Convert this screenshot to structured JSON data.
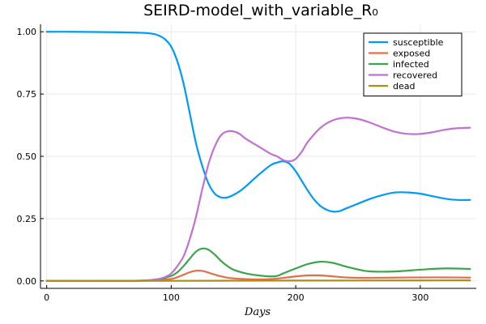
{
  "chart_data": {
    "type": "line",
    "title": "SEIRD-model_with_variable_R₀",
    "xlabel": "Days",
    "ylabel": "",
    "xlim": [
      -5,
      345
    ],
    "ylim": [
      -0.03,
      1.03
    ],
    "xticks": [
      0,
      100,
      200,
      300
    ],
    "xtick_labels": [
      "0",
      "100",
      "200",
      "300"
    ],
    "yticks": [
      0,
      0.25,
      0.5,
      0.75,
      1.0
    ],
    "ytick_labels": [
      "0.00",
      "0.25",
      "0.50",
      "0.75",
      "1.00"
    ],
    "grid": true,
    "legend_position": "top-right",
    "series": [
      {
        "name": "susceptible",
        "color": "#009af9",
        "x": [
          0,
          20,
          40,
          60,
          75,
          85,
          90,
          95,
          100,
          105,
          110,
          115,
          120,
          125,
          130,
          135,
          140,
          145,
          150,
          155,
          160,
          170,
          180,
          185,
          190,
          195,
          200,
          205,
          210,
          215,
          220,
          225,
          230,
          235,
          240,
          250,
          260,
          270,
          280,
          290,
          300,
          310,
          320,
          330,
          340
        ],
        "y": [
          1.0,
          1.0,
          0.999,
          0.998,
          0.996,
          0.992,
          0.985,
          0.97,
          0.94,
          0.88,
          0.79,
          0.67,
          0.55,
          0.46,
          0.39,
          0.35,
          0.335,
          0.335,
          0.345,
          0.36,
          0.38,
          0.425,
          0.465,
          0.475,
          0.48,
          0.47,
          0.44,
          0.4,
          0.36,
          0.325,
          0.3,
          0.285,
          0.278,
          0.28,
          0.29,
          0.31,
          0.33,
          0.345,
          0.355,
          0.355,
          0.35,
          0.34,
          0.33,
          0.325,
          0.325
        ]
      },
      {
        "name": "exposed",
        "color": "#e26f46",
        "x": [
          0,
          60,
          80,
          90,
          100,
          105,
          110,
          115,
          120,
          125,
          130,
          135,
          140,
          145,
          150,
          160,
          170,
          180,
          190,
          200,
          210,
          220,
          230,
          240,
          250,
          260,
          280,
          300,
          320,
          340
        ],
        "y": [
          0,
          0,
          0.001,
          0.003,
          0.008,
          0.015,
          0.025,
          0.035,
          0.041,
          0.04,
          0.033,
          0.025,
          0.018,
          0.013,
          0.01,
          0.007,
          0.006,
          0.007,
          0.012,
          0.018,
          0.022,
          0.022,
          0.018,
          0.014,
          0.012,
          0.012,
          0.013,
          0.014,
          0.014,
          0.013
        ]
      },
      {
        "name": "infected",
        "color": "#3da44d",
        "x": [
          0,
          60,
          80,
          90,
          100,
          105,
          110,
          115,
          120,
          125,
          130,
          135,
          140,
          145,
          150,
          160,
          170,
          180,
          185,
          190,
          200,
          210,
          220,
          230,
          240,
          250,
          260,
          280,
          300,
          320,
          340
        ],
        "y": [
          0,
          0,
          0.002,
          0.006,
          0.02,
          0.035,
          0.06,
          0.09,
          0.118,
          0.13,
          0.125,
          0.105,
          0.08,
          0.06,
          0.045,
          0.03,
          0.022,
          0.018,
          0.02,
          0.03,
          0.05,
          0.068,
          0.077,
          0.072,
          0.058,
          0.046,
          0.038,
          0.038,
          0.045,
          0.05,
          0.048
        ]
      },
      {
        "name": "recovered",
        "color": "#c271d2",
        "x": [
          0,
          60,
          80,
          90,
          95,
          100,
          105,
          110,
          115,
          120,
          125,
          130,
          135,
          140,
          145,
          150,
          155,
          160,
          170,
          180,
          185,
          190,
          195,
          200,
          205,
          210,
          220,
          230,
          240,
          250,
          260,
          270,
          280,
          290,
          300,
          310,
          320,
          330,
          340
        ],
        "y": [
          0,
          0,
          0.002,
          0.008,
          0.015,
          0.03,
          0.06,
          0.1,
          0.17,
          0.26,
          0.37,
          0.47,
          0.54,
          0.585,
          0.6,
          0.6,
          0.59,
          0.57,
          0.54,
          0.51,
          0.5,
          0.485,
          0.48,
          0.49,
          0.52,
          0.56,
          0.615,
          0.645,
          0.655,
          0.65,
          0.635,
          0.615,
          0.598,
          0.59,
          0.59,
          0.597,
          0.607,
          0.613,
          0.615
        ]
      },
      {
        "name": "dead",
        "color": "#ac8d18",
        "x": [
          0,
          100,
          150,
          200,
          250,
          300,
          340
        ],
        "y": [
          0,
          0.0002,
          0.0008,
          0.0012,
          0.0015,
          0.0018,
          0.002
        ]
      }
    ]
  }
}
